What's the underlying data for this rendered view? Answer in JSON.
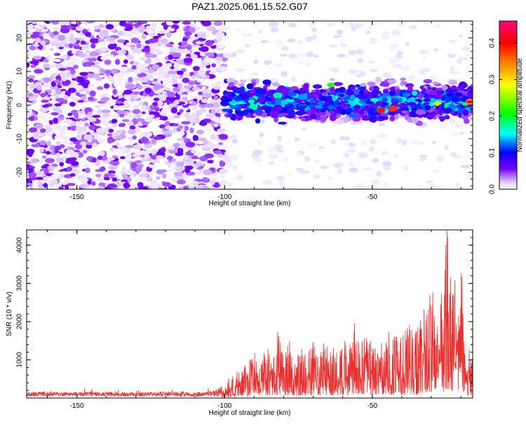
{
  "figure": {
    "title": "PAZ1.2025.061.15.52.G07"
  },
  "chart_data": [
    {
      "type": "heatmap",
      "title": "PAZ1.2025.061.15.52.G07",
      "xlabel": "Height of straight line (km)",
      "ylabel": "Frequency (Hz)",
      "xlim": [
        -167,
        -16
      ],
      "ylim": [
        -25,
        25
      ],
      "x_ticks": [
        -150,
        -100,
        -50
      ],
      "y_ticks": [
        20,
        10,
        0,
        -10,
        -20
      ],
      "colorbar": {
        "label": "Normalized spectral amplitude",
        "range": [
          0,
          0.46
        ],
        "ticks": [
          "0.0",
          "0.1",
          "0.2",
          "0.3",
          "0.4"
        ],
        "colormap": "rainbow",
        "colors": [
          "#ffffff",
          "#7b00ff",
          "#0000ff",
          "#00ffff",
          "#00ff00",
          "#ffff00",
          "#ff8000",
          "#ff0000",
          "#ff0080"
        ]
      },
      "regions": [
        {
          "x_range": [
            -167,
            -100
          ],
          "freq_range": [
            -25,
            25
          ],
          "mean_amplitude": 0.02,
          "note": ""
        },
        {
          "x_range": [
            -100,
            -16
          ],
          "freq_range": [
            -6,
            8
          ],
          "mean_amplitude": 0.12,
          "note": ""
        }
      ],
      "peaks": [
        {
          "x": -47,
          "freq": -1.5,
          "amplitude": 0.42
        },
        {
          "x": -43,
          "freq": -1.0,
          "amplitude": 0.38
        },
        {
          "x": -17,
          "freq": 1.0,
          "amplitude": 0.4
        },
        {
          "x": -64,
          "freq": 6.0,
          "amplitude": 0.22
        },
        {
          "x": -28,
          "freq": 0.5,
          "amplitude": 0.3
        }
      ]
    },
    {
      "type": "line",
      "title": "",
      "xlabel": "Height of straight line (km)",
      "ylabel": "SNR (10 * v/v)",
      "xlim": [
        -167,
        -16
      ],
      "ylim": [
        0,
        4400
      ],
      "x_ticks": [
        -150,
        -100,
        -50
      ],
      "y_ticks": [
        1000,
        2000,
        3000,
        4000
      ],
      "series": [
        {
          "color": "#e8302f",
          "x": [
            -167,
            -160,
            -150,
            -140,
            -130,
            -120,
            -110,
            -104,
            -100,
            -98,
            -95,
            -92,
            -90,
            -88,
            -86,
            -84,
            -82,
            -80,
            -78,
            -76,
            -74,
            -72,
            -70,
            -68,
            -66,
            -64,
            -62,
            -60,
            -58,
            -56,
            -54,
            -52,
            -50,
            -48,
            -46,
            -44,
            -42,
            -40,
            -38,
            -36,
            -34,
            -32,
            -30,
            -28,
            -26,
            -24.5,
            -23,
            -22,
            -21,
            -20,
            -19,
            -18,
            -17,
            -16
          ],
          "y": [
            120,
            150,
            130,
            140,
            120,
            150,
            130,
            160,
            350,
            600,
            700,
            900,
            1200,
            1100,
            1400,
            1000,
            1700,
            1200,
            1500,
            1000,
            1300,
            1200,
            1400,
            1100,
            1500,
            1350,
            1200,
            1600,
            1300,
            1900,
            1400,
            1600,
            1400,
            1500,
            1300,
            1800,
            1600,
            1500,
            1900,
            1700,
            2000,
            2400,
            2800,
            2200,
            3000,
            4350,
            2600,
            3900,
            1800,
            4250,
            1800,
            900,
            1300,
            1000
          ]
        }
      ]
    }
  ]
}
